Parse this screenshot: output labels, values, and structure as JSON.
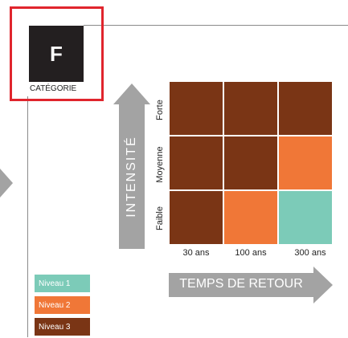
{
  "category": {
    "letter": "F",
    "label": "CATÉGORIE"
  },
  "intensity_axis": {
    "title": "INTENSITÉ",
    "levels": [
      "Forte",
      "Moyenne",
      "Faible"
    ]
  },
  "return_axis": {
    "title": "TEMPS DE RETOUR",
    "periods": [
      "30 ans",
      "100 ans",
      "300 ans"
    ]
  },
  "colors": {
    "niveau1": "#7ccbb8",
    "niveau2": "#f07737",
    "niveau3": "#7a3515",
    "arrow": "#a3a3a3",
    "highlight": "#e0252d",
    "category_box": "#231f20"
  },
  "matrix": [
    [
      "Niveau 3",
      "Niveau 3",
      "Niveau 3"
    ],
    [
      "Niveau 3",
      "Niveau 3",
      "Niveau 2"
    ],
    [
      "Niveau 3",
      "Niveau 2",
      "Niveau 1"
    ]
  ],
  "legend": [
    {
      "label": "Niveau 1",
      "level": "niveau1"
    },
    {
      "label": "Niveau 2",
      "level": "niveau2"
    },
    {
      "label": "Niveau 3",
      "level": "niveau3"
    }
  ]
}
